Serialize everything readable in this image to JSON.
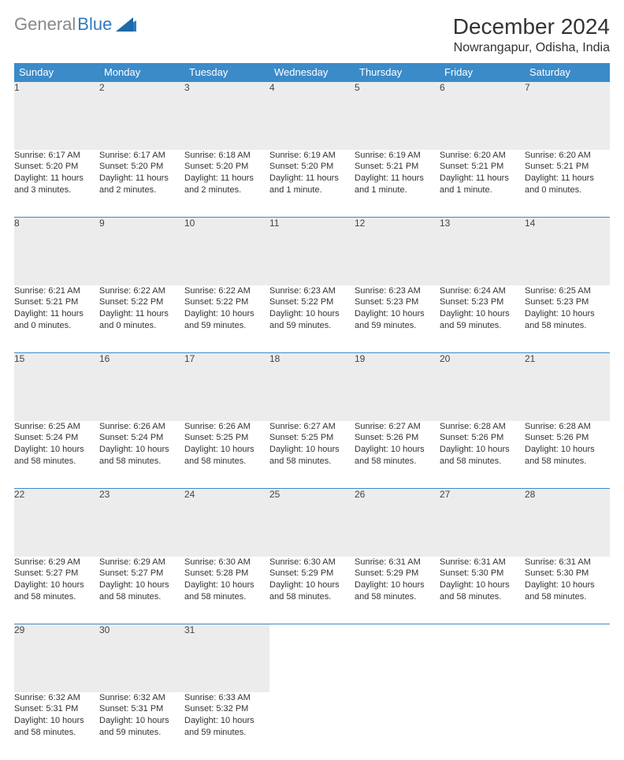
{
  "brand": {
    "gray": "General",
    "blue": "Blue"
  },
  "title": "December 2024",
  "location": "Nowrangapur, Odisha, India",
  "colors": {
    "header_bg": "#3b8bc9",
    "daynum_bg": "#ececec",
    "row_divider": "#3b8bc9",
    "logo_blue": "#2f7bbf",
    "logo_gray": "#888888"
  },
  "weekdays": [
    "Sunday",
    "Monday",
    "Tuesday",
    "Wednesday",
    "Thursday",
    "Friday",
    "Saturday"
  ],
  "weeks": [
    {
      "nums": [
        "1",
        "2",
        "3",
        "4",
        "5",
        "6",
        "7"
      ],
      "cells": [
        {
          "sunrise": "Sunrise: 6:17 AM",
          "sunset": "Sunset: 5:20 PM",
          "day1": "Daylight: 11 hours",
          "day2": "and 3 minutes."
        },
        {
          "sunrise": "Sunrise: 6:17 AM",
          "sunset": "Sunset: 5:20 PM",
          "day1": "Daylight: 11 hours",
          "day2": "and 2 minutes."
        },
        {
          "sunrise": "Sunrise: 6:18 AM",
          "sunset": "Sunset: 5:20 PM",
          "day1": "Daylight: 11 hours",
          "day2": "and 2 minutes."
        },
        {
          "sunrise": "Sunrise: 6:19 AM",
          "sunset": "Sunset: 5:20 PM",
          "day1": "Daylight: 11 hours",
          "day2": "and 1 minute."
        },
        {
          "sunrise": "Sunrise: 6:19 AM",
          "sunset": "Sunset: 5:21 PM",
          "day1": "Daylight: 11 hours",
          "day2": "and 1 minute."
        },
        {
          "sunrise": "Sunrise: 6:20 AM",
          "sunset": "Sunset: 5:21 PM",
          "day1": "Daylight: 11 hours",
          "day2": "and 1 minute."
        },
        {
          "sunrise": "Sunrise: 6:20 AM",
          "sunset": "Sunset: 5:21 PM",
          "day1": "Daylight: 11 hours",
          "day2": "and 0 minutes."
        }
      ]
    },
    {
      "nums": [
        "8",
        "9",
        "10",
        "11",
        "12",
        "13",
        "14"
      ],
      "cells": [
        {
          "sunrise": "Sunrise: 6:21 AM",
          "sunset": "Sunset: 5:21 PM",
          "day1": "Daylight: 11 hours",
          "day2": "and 0 minutes."
        },
        {
          "sunrise": "Sunrise: 6:22 AM",
          "sunset": "Sunset: 5:22 PM",
          "day1": "Daylight: 11 hours",
          "day2": "and 0 minutes."
        },
        {
          "sunrise": "Sunrise: 6:22 AM",
          "sunset": "Sunset: 5:22 PM",
          "day1": "Daylight: 10 hours",
          "day2": "and 59 minutes."
        },
        {
          "sunrise": "Sunrise: 6:23 AM",
          "sunset": "Sunset: 5:22 PM",
          "day1": "Daylight: 10 hours",
          "day2": "and 59 minutes."
        },
        {
          "sunrise": "Sunrise: 6:23 AM",
          "sunset": "Sunset: 5:23 PM",
          "day1": "Daylight: 10 hours",
          "day2": "and 59 minutes."
        },
        {
          "sunrise": "Sunrise: 6:24 AM",
          "sunset": "Sunset: 5:23 PM",
          "day1": "Daylight: 10 hours",
          "day2": "and 59 minutes."
        },
        {
          "sunrise": "Sunrise: 6:25 AM",
          "sunset": "Sunset: 5:23 PM",
          "day1": "Daylight: 10 hours",
          "day2": "and 58 minutes."
        }
      ]
    },
    {
      "nums": [
        "15",
        "16",
        "17",
        "18",
        "19",
        "20",
        "21"
      ],
      "cells": [
        {
          "sunrise": "Sunrise: 6:25 AM",
          "sunset": "Sunset: 5:24 PM",
          "day1": "Daylight: 10 hours",
          "day2": "and 58 minutes."
        },
        {
          "sunrise": "Sunrise: 6:26 AM",
          "sunset": "Sunset: 5:24 PM",
          "day1": "Daylight: 10 hours",
          "day2": "and 58 minutes."
        },
        {
          "sunrise": "Sunrise: 6:26 AM",
          "sunset": "Sunset: 5:25 PM",
          "day1": "Daylight: 10 hours",
          "day2": "and 58 minutes."
        },
        {
          "sunrise": "Sunrise: 6:27 AM",
          "sunset": "Sunset: 5:25 PM",
          "day1": "Daylight: 10 hours",
          "day2": "and 58 minutes."
        },
        {
          "sunrise": "Sunrise: 6:27 AM",
          "sunset": "Sunset: 5:26 PM",
          "day1": "Daylight: 10 hours",
          "day2": "and 58 minutes."
        },
        {
          "sunrise": "Sunrise: 6:28 AM",
          "sunset": "Sunset: 5:26 PM",
          "day1": "Daylight: 10 hours",
          "day2": "and 58 minutes."
        },
        {
          "sunrise": "Sunrise: 6:28 AM",
          "sunset": "Sunset: 5:26 PM",
          "day1": "Daylight: 10 hours",
          "day2": "and 58 minutes."
        }
      ]
    },
    {
      "nums": [
        "22",
        "23",
        "24",
        "25",
        "26",
        "27",
        "28"
      ],
      "cells": [
        {
          "sunrise": "Sunrise: 6:29 AM",
          "sunset": "Sunset: 5:27 PM",
          "day1": "Daylight: 10 hours",
          "day2": "and 58 minutes."
        },
        {
          "sunrise": "Sunrise: 6:29 AM",
          "sunset": "Sunset: 5:27 PM",
          "day1": "Daylight: 10 hours",
          "day2": "and 58 minutes."
        },
        {
          "sunrise": "Sunrise: 6:30 AM",
          "sunset": "Sunset: 5:28 PM",
          "day1": "Daylight: 10 hours",
          "day2": "and 58 minutes."
        },
        {
          "sunrise": "Sunrise: 6:30 AM",
          "sunset": "Sunset: 5:29 PM",
          "day1": "Daylight: 10 hours",
          "day2": "and 58 minutes."
        },
        {
          "sunrise": "Sunrise: 6:31 AM",
          "sunset": "Sunset: 5:29 PM",
          "day1": "Daylight: 10 hours",
          "day2": "and 58 minutes."
        },
        {
          "sunrise": "Sunrise: 6:31 AM",
          "sunset": "Sunset: 5:30 PM",
          "day1": "Daylight: 10 hours",
          "day2": "and 58 minutes."
        },
        {
          "sunrise": "Sunrise: 6:31 AM",
          "sunset": "Sunset: 5:30 PM",
          "day1": "Daylight: 10 hours",
          "day2": "and 58 minutes."
        }
      ]
    },
    {
      "nums": [
        "29",
        "30",
        "31",
        "",
        "",
        "",
        ""
      ],
      "cells": [
        {
          "sunrise": "Sunrise: 6:32 AM",
          "sunset": "Sunset: 5:31 PM",
          "day1": "Daylight: 10 hours",
          "day2": "and 58 minutes."
        },
        {
          "sunrise": "Sunrise: 6:32 AM",
          "sunset": "Sunset: 5:31 PM",
          "day1": "Daylight: 10 hours",
          "day2": "and 59 minutes."
        },
        {
          "sunrise": "Sunrise: 6:33 AM",
          "sunset": "Sunset: 5:32 PM",
          "day1": "Daylight: 10 hours",
          "day2": "and 59 minutes."
        },
        null,
        null,
        null,
        null
      ]
    }
  ]
}
